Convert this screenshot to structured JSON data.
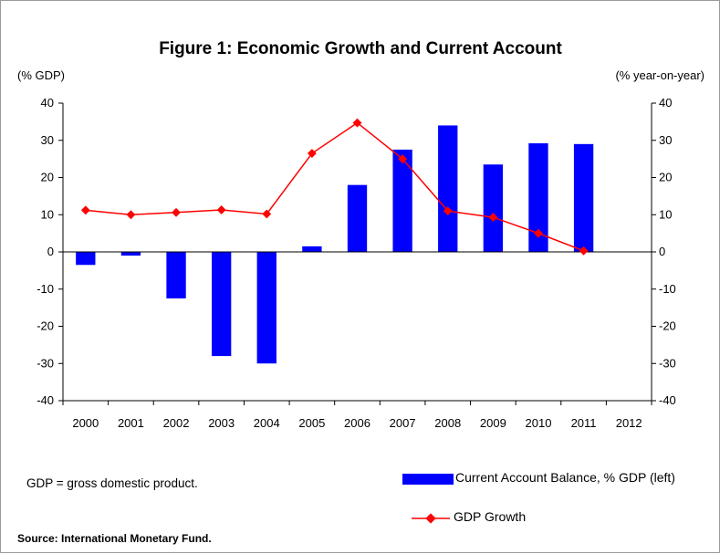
{
  "chart_data": {
    "type": "bar",
    "title": "Figure 1: Economic Growth and Current Account",
    "left_unit": "(% GDP)",
    "right_unit": "(% year-on-year)",
    "categories": [
      "2000",
      "2001",
      "2002",
      "2003",
      "2004",
      "2005",
      "2006",
      "2007",
      "2008",
      "2009",
      "2010",
      "2011",
      "2012"
    ],
    "ylim": [
      -40,
      40
    ],
    "yticks": [
      40,
      30,
      20,
      10,
      0,
      -10,
      -20,
      -30,
      -40
    ],
    "y2lim": [
      -40,
      40
    ],
    "series": [
      {
        "name": "Current Account Balance, % GDP (left)",
        "type": "bar",
        "axis": "left",
        "color": "#0000ff",
        "values": [
          -3.5,
          -1,
          -12.5,
          -28,
          -30,
          1.5,
          18,
          27.5,
          34,
          23.5,
          29.2,
          29,
          null
        ]
      },
      {
        "name": "GDP Growth",
        "type": "line",
        "axis": "right",
        "color": "#ff0000",
        "values": [
          11.2,
          10,
          10.6,
          11.3,
          10.2,
          26.5,
          34.7,
          25,
          11,
          9.3,
          5,
          0.3,
          null
        ]
      }
    ],
    "legend_position": "bottom-right",
    "grid": false
  },
  "notes": {
    "gdp_note": "GDP = gross domestic product.",
    "source": "Source: International Monetary Fund."
  }
}
